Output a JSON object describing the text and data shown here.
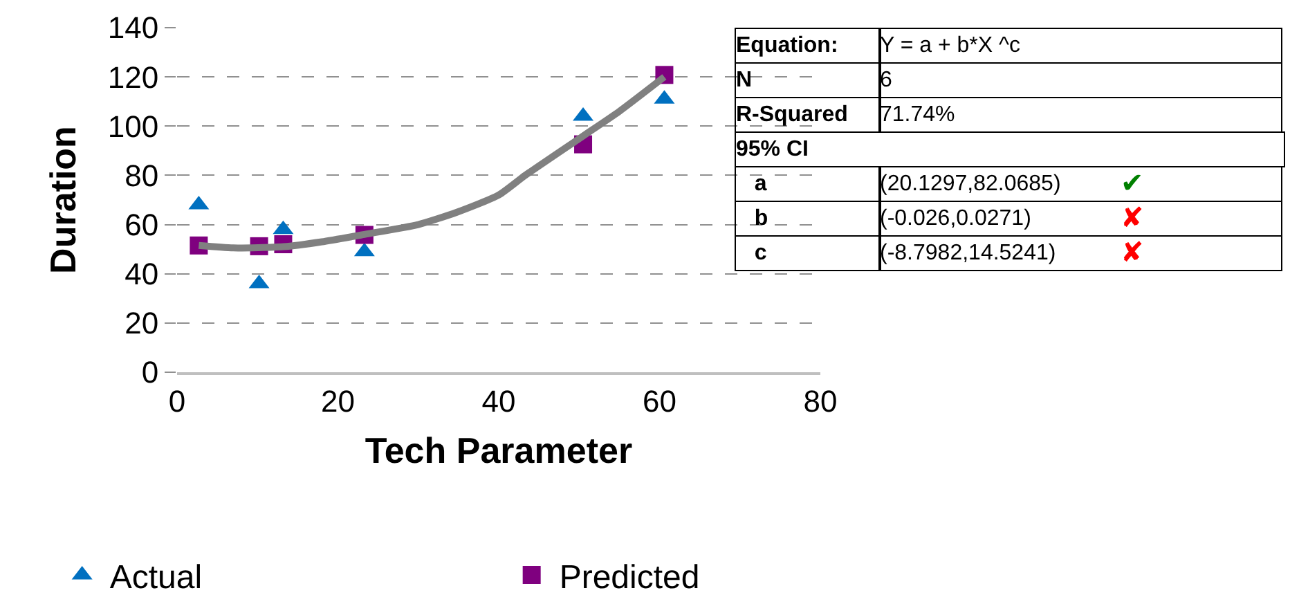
{
  "chart_data": {
    "type": "scatter",
    "xlabel": "Tech Parameter",
    "ylabel": "Duration",
    "xlim": [
      0,
      80
    ],
    "xticks": [
      0,
      20,
      40,
      60,
      80
    ],
    "ylim": [
      0,
      140
    ],
    "yticks": [
      0,
      20,
      40,
      60,
      80,
      100,
      120,
      140
    ],
    "grid": "y",
    "legend": "bottom left",
    "series": [
      {
        "name": "Actual",
        "marker": "triangle",
        "color": "#0070c0",
        "x": [
          2.7,
          10.2,
          13.2,
          23.3,
          50.5,
          60.6
        ],
        "values": [
          68,
          36,
          58,
          49,
          104,
          111
        ]
      },
      {
        "name": "Predicted",
        "marker": "square",
        "color": "#7f007f",
        "x": [
          2.7,
          10.2,
          13.2,
          23.3,
          50.5,
          60.6
        ],
        "values": [
          51.5,
          51.2,
          52,
          55.8,
          92.6,
          120.8
        ]
      },
      {
        "type": "line",
        "marker": "none",
        "color": "#808080",
        "x": [
          2.7,
          7,
          13.2,
          18,
          23.3,
          30,
          34.8,
          40,
          43.3,
          50.5,
          55,
          60.6
        ],
        "values": [
          51.5,
          50.5,
          51,
          53,
          56,
          60,
          65,
          72,
          80,
          96,
          106,
          120
        ]
      }
    ],
    "annotations": [
      "Equation:",
      "Y = a + b*X ^c",
      "N",
      "6",
      "R-Squared",
      "71.74%",
      "95% CI",
      null,
      "a",
      "(20.1297,82.0685)",
      "b",
      "(-0.026,0.0271)",
      "c",
      "(-8.7982,14.5241)",
      "✔",
      "✘",
      "✘"
    ]
  }
}
